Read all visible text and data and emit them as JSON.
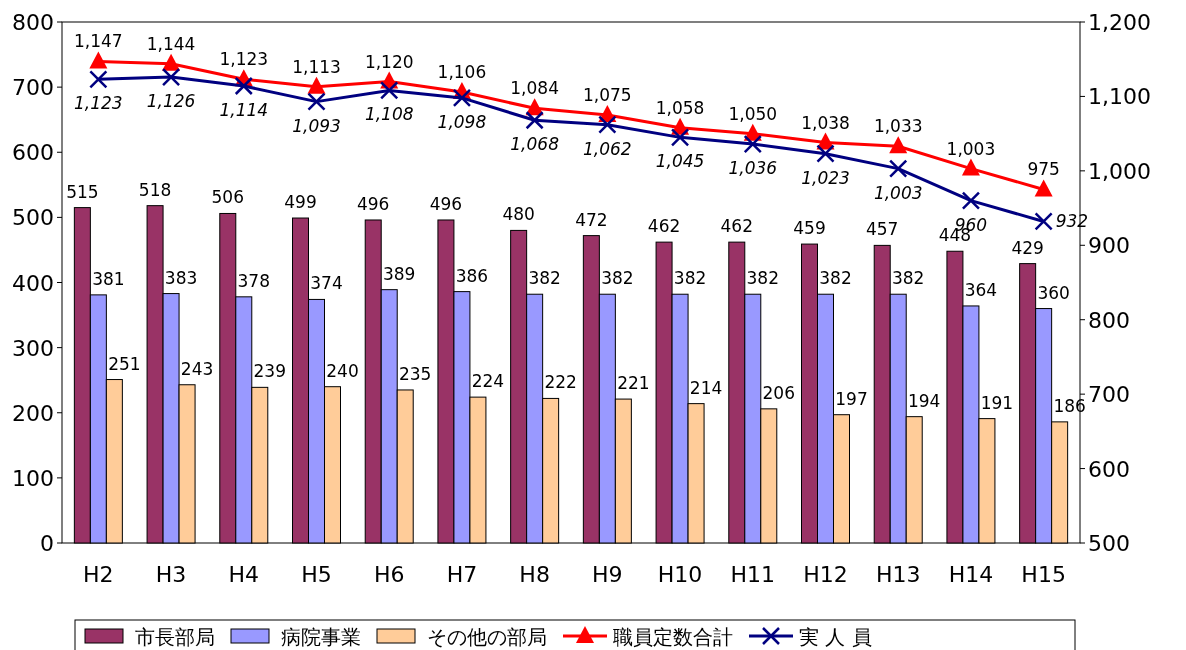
{
  "chart_data": {
    "type": "bar",
    "categories": [
      "H2",
      "H3",
      "H4",
      "H5",
      "H6",
      "H7",
      "H8",
      "H9",
      "H10",
      "H11",
      "H12",
      "H13",
      "H14",
      "H15"
    ],
    "series": [
      {
        "name": "市長部局",
        "color": "#993366",
        "values": [
          515,
          518,
          506,
          499,
          496,
          496,
          480,
          472,
          462,
          462,
          459,
          457,
          448,
          429
        ]
      },
      {
        "name": "病院事業",
        "color": "#9999ff",
        "values": [
          381,
          383,
          378,
          374,
          389,
          386,
          382,
          382,
          382,
          382,
          382,
          382,
          364,
          360
        ]
      },
      {
        "name": "その他の部局",
        "color": "#ffcc99",
        "values": [
          251,
          243,
          239,
          240,
          235,
          224,
          222,
          221,
          214,
          206,
          197,
          194,
          191,
          186
        ]
      },
      {
        "name": "職員定数合計",
        "color": "#ff0000",
        "type": "line",
        "axis": "y2",
        "marker": "triangle",
        "values": [
          1147,
          1144,
          1123,
          1113,
          1120,
          1106,
          1084,
          1075,
          1058,
          1050,
          1038,
          1033,
          1003,
          975
        ],
        "value_labels": [
          "1,147",
          "1,144",
          "1,123",
          "1,113",
          "1,120",
          "1,106",
          "1,084",
          "1,075",
          "1,058",
          "1,050",
          "1,038",
          "1,033",
          "1,003",
          "975"
        ]
      },
      {
        "name": "実 人 員",
        "color": "#000080",
        "type": "line",
        "axis": "y2",
        "marker": "cross",
        "values": [
          1123,
          1126,
          1114,
          1093,
          1108,
          1098,
          1068,
          1062,
          1045,
          1036,
          1023,
          1003,
          960,
          932
        ],
        "value_labels": [
          "1,123",
          "1,126",
          "1,114",
          "1,093",
          "1,108",
          "1,098",
          "1,068",
          "1,062",
          "1,045",
          "1,036",
          "1,023",
          "1,003",
          "960",
          "932"
        ]
      }
    ],
    "ylim": [
      0,
      800
    ],
    "yticks": [
      0,
      100,
      200,
      300,
      400,
      500,
      600,
      700,
      800
    ],
    "y2lim": [
      500,
      1200
    ],
    "y2ticks": [
      500,
      600,
      700,
      800,
      900,
      {
        "value": 1000,
        "label": "1,000"
      },
      {
        "value": 1100,
        "label": "1,100"
      },
      {
        "value": 1200,
        "label": "1,200"
      }
    ],
    "data_labels": true,
    "legend": "bottom",
    "grid": false
  }
}
